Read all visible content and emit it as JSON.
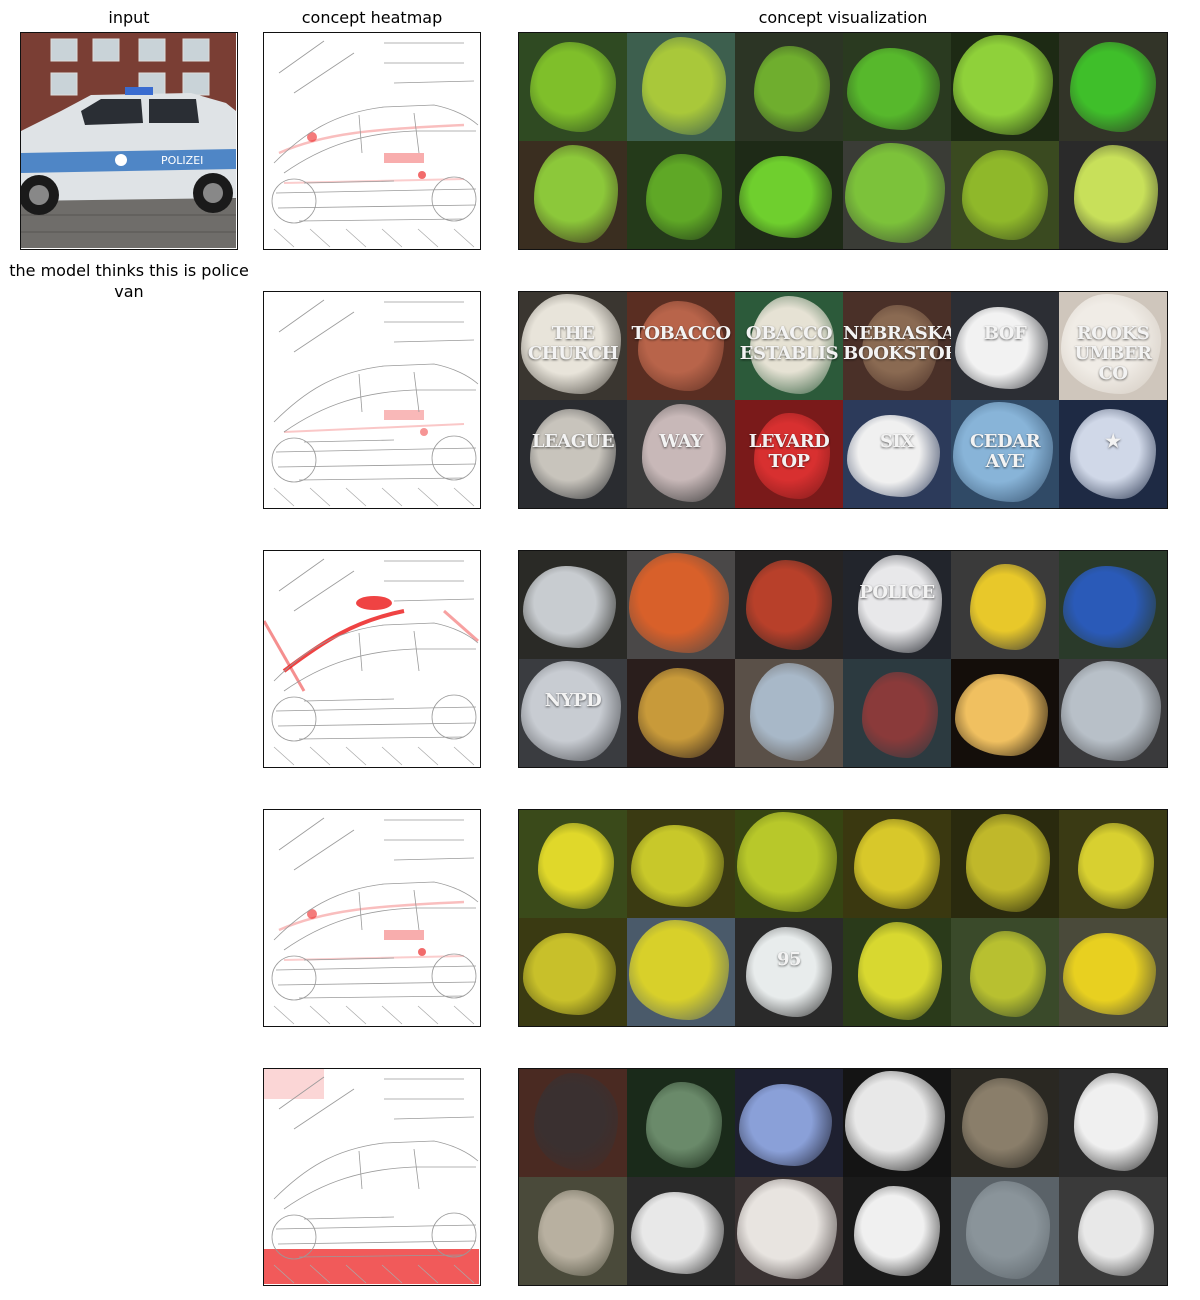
{
  "headers": {
    "input": "input",
    "heatmap": "concept heatmap",
    "visualization": "concept visualization"
  },
  "prediction_text": "the model thinks this is police van",
  "input_image": {
    "car_door_text": "POLIZEI"
  },
  "rows": [
    {
      "heat_intensity": 0.35,
      "hotspot": "car-body-lower",
      "tiles": [
        {
          "bg": "#2f4a22",
          "fg": "#7fbf2a",
          "text": ""
        },
        {
          "bg": "#3d5f4e",
          "fg": "#a9c83a",
          "text": ""
        },
        {
          "bg": "#2c3525",
          "fg": "#6fae2e",
          "text": ""
        },
        {
          "bg": "#2a3a20",
          "fg": "#57b82c",
          "text": ""
        },
        {
          "bg": "#1d2a14",
          "fg": "#8fd13a",
          "text": ""
        },
        {
          "bg": "#323428",
          "fg": "#3fbf2a",
          "text": ""
        },
        {
          "bg": "#3a2e20",
          "fg": "#8cc83a",
          "text": ""
        },
        {
          "bg": "#243a1a",
          "fg": "#5fa826",
          "text": ""
        },
        {
          "bg": "#1e2a17",
          "fg": "#6fcf2e",
          "text": ""
        },
        {
          "bg": "#3a3c36",
          "fg": "#7cc23a",
          "text": ""
        },
        {
          "bg": "#3a4a20",
          "fg": "#8fb82a",
          "text": ""
        },
        {
          "bg": "#2a2a2a",
          "fg": "#c8e05a",
          "text": ""
        }
      ]
    },
    {
      "heat_intensity": 0.3,
      "hotspot": "car-text-panel",
      "tiles": [
        {
          "bg": "#3a3630",
          "fg": "#e8e4da",
          "text": "THE\nCHURCH"
        },
        {
          "bg": "#5a2e22",
          "fg": "#b8644a",
          "text": "TOBACCO"
        },
        {
          "bg": "#2c5a3a",
          "fg": "#e6e2d4",
          "text": "OBACCO\nESTABLIS"
        },
        {
          "bg": "#4a3028",
          "fg": "#8a6a52",
          "text": "NEBRASKA\nBOOKSTORE"
        },
        {
          "bg": "#2c2e34",
          "fg": "#f2f2f2",
          "text": "BOF"
        },
        {
          "bg": "#cfc6bc",
          "fg": "#f0ece6",
          "text": "ROOKS\nUMBER\nCO"
        },
        {
          "bg": "#2a2c30",
          "fg": "#c8c4bc",
          "text": "LEAGUE"
        },
        {
          "bg": "#3a3a3a",
          "fg": "#c8b8b8",
          "text": "WAY"
        },
        {
          "bg": "#7a1a1a",
          "fg": "#d83030",
          "text": "LEVARD\nTOP"
        },
        {
          "bg": "#2c3a5a",
          "fg": "#f0f0f0",
          "text": "SIX"
        },
        {
          "bg": "#304a66",
          "fg": "#88b4d8",
          "text": "CEDAR AVE"
        },
        {
          "bg": "#1e2a44",
          "fg": "#d0d8e8",
          "text": "★"
        }
      ]
    },
    {
      "heat_intensity": 0.8,
      "hotspot": "car-roof-light",
      "tiles": [
        {
          "bg": "#2a2a26",
          "fg": "#c8ccd0",
          "text": ""
        },
        {
          "bg": "#4a4848",
          "fg": "#d8602a",
          "text": ""
        },
        {
          "bg": "#262424",
          "fg": "#b8402a",
          "text": ""
        },
        {
          "bg": "#22252c",
          "fg": "#e8e8ea",
          "text": "POLICE"
        },
        {
          "bg": "#3a3a3a",
          "fg": "#e8c82a",
          "text": ""
        },
        {
          "bg": "#2a3a2a",
          "fg": "#2a5ab8",
          "text": ""
        },
        {
          "bg": "#3a3c40",
          "fg": "#c8ccd2",
          "text": "NYPD"
        },
        {
          "bg": "#2a1e1c",
          "fg": "#c89a3a",
          "text": ""
        },
        {
          "bg": "#5a5048",
          "fg": "#a8b8c8",
          "text": ""
        },
        {
          "bg": "#2c3a40",
          "fg": "#8a3a3a",
          "text": ""
        },
        {
          "bg": "#140e0a",
          "fg": "#f0c060",
          "text": ""
        },
        {
          "bg": "#3a3a3c",
          "fg": "#b8c0c8",
          "text": ""
        }
      ]
    },
    {
      "heat_intensity": 0.35,
      "hotspot": "car-body-lower",
      "tiles": [
        {
          "bg": "#3a4a1a",
          "fg": "#e0d82a",
          "text": ""
        },
        {
          "bg": "#3a3a12",
          "fg": "#c8c82a",
          "text": ""
        },
        {
          "bg": "#364412",
          "fg": "#b8c82a",
          "text": ""
        },
        {
          "bg": "#3a3810",
          "fg": "#d8c82a",
          "text": ""
        },
        {
          "bg": "#2a2a0e",
          "fg": "#c0b82a",
          "text": ""
        },
        {
          "bg": "#3a3a14",
          "fg": "#d8d030",
          "text": ""
        },
        {
          "bg": "#3a3a12",
          "fg": "#c8c02a",
          "text": ""
        },
        {
          "bg": "#4a5a6a",
          "fg": "#d8d02a",
          "text": ""
        },
        {
          "bg": "#2a2a2a",
          "fg": "#e8ecec",
          "text": "95"
        },
        {
          "bg": "#2a3a1a",
          "fg": "#d8d830",
          "text": ""
        },
        {
          "bg": "#3a4a2a",
          "fg": "#b8c030",
          "text": ""
        },
        {
          "bg": "#4a4a3a",
          "fg": "#e8d020",
          "text": ""
        }
      ]
    },
    {
      "heat_intensity": 0.7,
      "hotspot": "ground-cobblestones",
      "tiles": [
        {
          "bg": "#4a2a22",
          "fg": "#3a3030",
          "text": ""
        },
        {
          "bg": "#1a2a1a",
          "fg": "#6a8a6a",
          "text": ""
        },
        {
          "bg": "#1e2030",
          "fg": "#8aa0d8",
          "text": ""
        },
        {
          "bg": "#141414",
          "fg": "#e8e8e8",
          "text": ""
        },
        {
          "bg": "#2a2822",
          "fg": "#8a7e6a",
          "text": ""
        },
        {
          "bg": "#2a2a2a",
          "fg": "#f0f0f0",
          "text": ""
        },
        {
          "bg": "#4a4a3a",
          "fg": "#b8b0a0",
          "text": ""
        },
        {
          "bg": "#2a2a2a",
          "fg": "#e8e8e8",
          "text": ""
        },
        {
          "bg": "#3a3232",
          "fg": "#e8e4e0",
          "text": ""
        },
        {
          "bg": "#1a1a1a",
          "fg": "#f0f0f0",
          "text": ""
        },
        {
          "bg": "#5a6268",
          "fg": "#8a949a",
          "text": ""
        },
        {
          "bg": "#3a3a3a",
          "fg": "#e8e8e8",
          "text": ""
        }
      ]
    }
  ]
}
